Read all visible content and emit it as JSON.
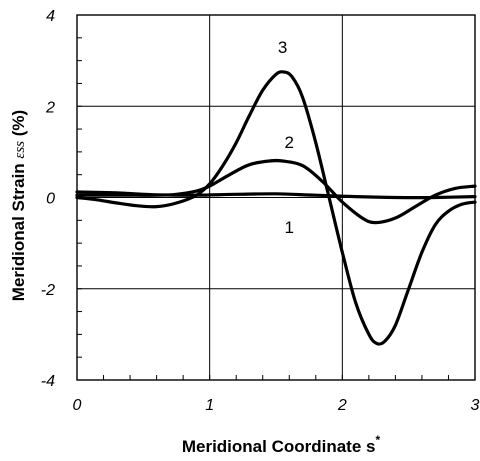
{
  "chart_data": {
    "type": "line",
    "title": "",
    "xlabel": "Meridional Coordinate s",
    "xlabel_superscript": "*",
    "ylabel": "Meridional Strain",
    "ylabel_symbol": "εss",
    "ylabel_unit": "(%)",
    "xlim": [
      0,
      3
    ],
    "ylim": [
      -4,
      4
    ],
    "x_ticks": [
      0,
      1,
      2,
      3
    ],
    "y_ticks": [
      -4,
      -2,
      0,
      2,
      4
    ],
    "x_tick_labels": [
      "0",
      "1",
      "2",
      "3"
    ],
    "y_tick_labels": [
      "-4",
      "-2",
      "0",
      "2",
      "4"
    ],
    "grid": true,
    "legend": "none",
    "line_color": "#000000",
    "series": [
      {
        "name": "1",
        "label_at": [
          1.6,
          -0.65
        ],
        "x": [
          0,
          0.3,
          0.6,
          0.9,
          1.2,
          1.5,
          1.8,
          2.1,
          2.4,
          2.7,
          3.0
        ],
        "y": [
          0.12,
          0.1,
          0.06,
          0.05,
          0.07,
          0.08,
          0.05,
          0.02,
          0.0,
          0.0,
          0.02
        ]
      },
      {
        "name": "2",
        "label_at": [
          1.6,
          1.22
        ],
        "x": [
          0,
          0.15,
          0.3,
          0.45,
          0.6,
          0.75,
          0.9,
          1.0,
          1.15,
          1.3,
          1.45,
          1.55,
          1.7,
          1.85,
          2.0,
          2.15,
          2.25,
          2.4,
          2.55,
          2.7,
          2.85,
          3.0
        ],
        "y": [
          0.05,
          0.05,
          0.05,
          0.05,
          0.05,
          0.07,
          0.14,
          0.25,
          0.5,
          0.72,
          0.8,
          0.8,
          0.7,
          0.35,
          -0.1,
          -0.45,
          -0.55,
          -0.45,
          -0.2,
          0.05,
          0.2,
          0.25
        ]
      },
      {
        "name": "3",
        "label_at": [
          1.55,
          3.3
        ],
        "x": [
          0,
          0.15,
          0.3,
          0.45,
          0.6,
          0.75,
          0.9,
          1.0,
          1.1,
          1.2,
          1.3,
          1.4,
          1.5,
          1.56,
          1.62,
          1.7,
          1.8,
          1.9,
          2.0,
          2.1,
          2.2,
          2.26,
          2.32,
          2.4,
          2.5,
          2.6,
          2.7,
          2.8,
          2.9,
          3.0
        ],
        "y": [
          0.0,
          -0.05,
          -0.12,
          -0.18,
          -0.2,
          -0.12,
          0.05,
          0.3,
          0.7,
          1.2,
          1.8,
          2.35,
          2.7,
          2.75,
          2.65,
          2.2,
          1.2,
          0.0,
          -1.2,
          -2.3,
          -3.0,
          -3.2,
          -3.15,
          -2.8,
          -2.0,
          -1.2,
          -0.6,
          -0.3,
          -0.15,
          -0.1
        ]
      }
    ]
  }
}
